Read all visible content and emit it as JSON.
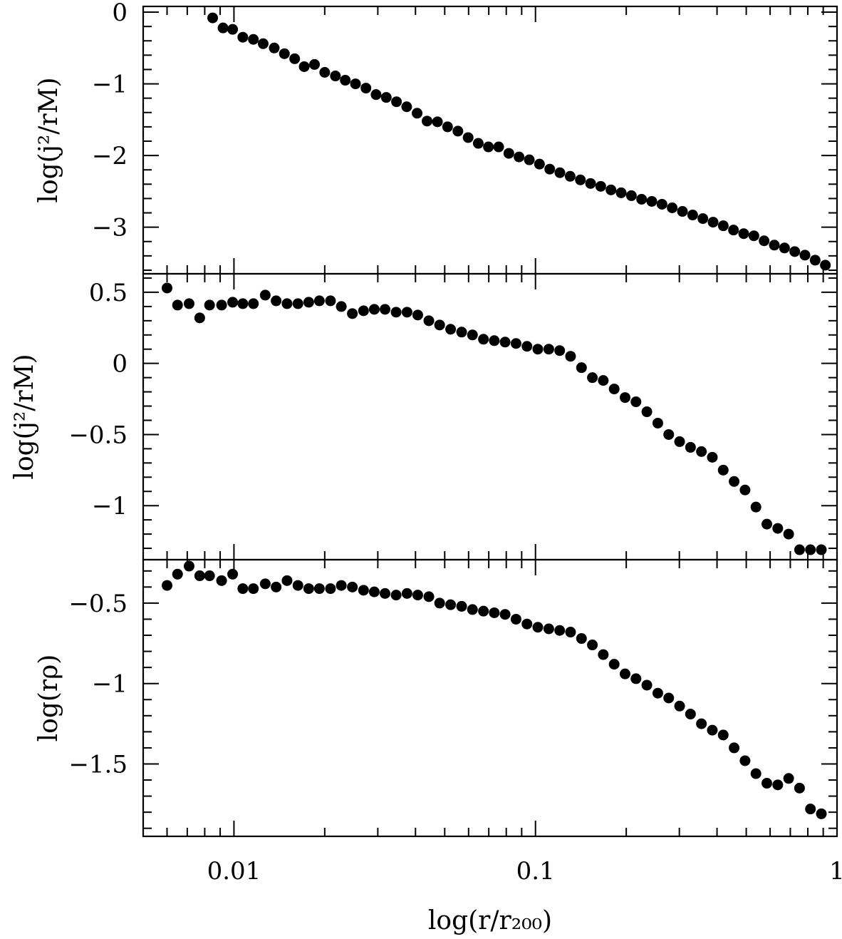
{
  "chart_data": [
    {
      "type": "scatter",
      "panel": "top",
      "ylabel": "log(j²/rM)",
      "ylim": [
        -3.65,
        0.08
      ],
      "yticks": [
        "0",
        "−1",
        "−2",
        "−3"
      ],
      "ytick_values": [
        0,
        -1,
        -2,
        -3
      ],
      "series": [
        {
          "x": [
            0.0085,
            0.0092,
            0.0099,
            0.0107,
            0.0116,
            0.0125,
            0.0136,
            0.0147,
            0.0159,
            0.0171,
            0.0185,
            0.02,
            0.0217,
            0.0234,
            0.0253,
            0.0274,
            0.0296,
            0.032,
            0.0346,
            0.0374,
            0.0405,
            0.0437,
            0.0473,
            0.0511,
            0.0553,
            0.0598,
            0.0646,
            0.0698,
            0.0755,
            0.0816,
            0.0882,
            0.0954,
            0.1031,
            0.1115,
            0.1205,
            0.1303,
            0.1409,
            0.1523,
            0.1646,
            0.178,
            0.1924,
            0.208,
            0.2249,
            0.2431,
            0.2628,
            0.2841,
            0.3072,
            0.3321,
            0.359,
            0.3881,
            0.4196,
            0.4536,
            0.4904,
            0.5301,
            0.5731,
            0.6196,
            0.6698,
            0.7241,
            0.7828,
            0.8463,
            0.9149
          ],
          "y": [
            -0.08,
            -0.22,
            -0.24,
            -0.35,
            -0.38,
            -0.44,
            -0.5,
            -0.58,
            -0.65,
            -0.76,
            -0.73,
            -0.84,
            -0.89,
            -0.95,
            -1.0,
            -1.06,
            -1.15,
            -1.19,
            -1.25,
            -1.32,
            -1.41,
            -1.52,
            -1.53,
            -1.6,
            -1.66,
            -1.75,
            -1.83,
            -1.88,
            -1.88,
            -1.97,
            -2.02,
            -2.06,
            -2.12,
            -2.19,
            -2.24,
            -2.29,
            -2.34,
            -2.39,
            -2.43,
            -2.48,
            -2.52,
            -2.56,
            -2.61,
            -2.64,
            -2.68,
            -2.73,
            -2.78,
            -2.83,
            -2.88,
            -2.93,
            -2.98,
            -3.04,
            -3.09,
            -3.12,
            -3.19,
            -3.25,
            -3.29,
            -3.34,
            -3.39,
            -3.46,
            -3.53
          ]
        }
      ]
    },
    {
      "type": "scatter",
      "panel": "middle",
      "ylabel": "log(j²/rM)",
      "ylim": [
        -1.38,
        0.63
      ],
      "yticks": [
        "0.5",
        "0",
        "−0.5",
        "−1"
      ],
      "ytick_values": [
        0.5,
        0,
        -0.5,
        -1
      ],
      "series": [
        {
          "x": [
            0.006,
            0.0065,
            0.0071,
            0.0077,
            0.0083,
            0.0091,
            0.0099,
            0.0107,
            0.0116,
            0.0127,
            0.0138,
            0.015,
            0.0163,
            0.0177,
            0.0192,
            0.0209,
            0.0227,
            0.0247,
            0.0269,
            0.0292,
            0.0317,
            0.0345,
            0.0375,
            0.0407,
            0.0443,
            0.0481,
            0.0523,
            0.0569,
            0.0618,
            0.0672,
            0.073,
            0.0793,
            0.0862,
            0.0937,
            0.1018,
            0.1107,
            0.1203,
            0.1307,
            0.1421,
            0.1544,
            0.1678,
            0.1824,
            0.1982,
            0.2154,
            0.2341,
            0.2545,
            0.2766,
            0.3006,
            0.3267,
            0.3551,
            0.3859,
            0.4194,
            0.4558,
            0.4954,
            0.5384,
            0.5852,
            0.636,
            0.6912,
            0.7512,
            0.8164,
            0.8873
          ],
          "y": [
            0.53,
            0.41,
            0.42,
            0.32,
            0.41,
            0.41,
            0.43,
            0.42,
            0.42,
            0.48,
            0.44,
            0.42,
            0.42,
            0.43,
            0.44,
            0.44,
            0.4,
            0.35,
            0.37,
            0.38,
            0.38,
            0.36,
            0.36,
            0.34,
            0.3,
            0.27,
            0.24,
            0.22,
            0.2,
            0.17,
            0.16,
            0.15,
            0.14,
            0.12,
            0.1,
            0.1,
            0.09,
            0.05,
            -0.03,
            -0.1,
            -0.12,
            -0.18,
            -0.24,
            -0.27,
            -0.34,
            -0.42,
            -0.5,
            -0.55,
            -0.59,
            -0.62,
            -0.66,
            -0.75,
            -0.83,
            -0.89,
            -1.01,
            -1.13,
            -1.16,
            -1.2,
            -1.31,
            -1.31,
            -1.31
          ]
        }
      ]
    },
    {
      "type": "scatter",
      "panel": "bottom",
      "ylabel": "log(rρ)",
      "ylim": [
        -1.95,
        -0.23
      ],
      "yticks": [
        "−0.5",
        "−1",
        "−1.5"
      ],
      "ytick_values": [
        -0.5,
        -1,
        -1.5
      ],
      "xlabel": "log(r/r₂₀₀)",
      "xscale": "log",
      "xlim": [
        0.005,
        1
      ],
      "xticks": [
        "0.01",
        "0.1",
        "1"
      ],
      "xtick_values": [
        0.01,
        0.1,
        1
      ],
      "series": [
        {
          "x": [
            0.006,
            0.0065,
            0.0071,
            0.0077,
            0.0083,
            0.0091,
            0.0099,
            0.0107,
            0.0116,
            0.0127,
            0.0138,
            0.015,
            0.0163,
            0.0177,
            0.0192,
            0.0209,
            0.0227,
            0.0247,
            0.0269,
            0.0292,
            0.0317,
            0.0345,
            0.0375,
            0.0407,
            0.0443,
            0.0481,
            0.0523,
            0.0569,
            0.0618,
            0.0672,
            0.073,
            0.0793,
            0.0862,
            0.0937,
            0.1018,
            0.1107,
            0.1203,
            0.1307,
            0.1421,
            0.1544,
            0.1678,
            0.1824,
            0.1982,
            0.2154,
            0.2341,
            0.2545,
            0.2766,
            0.3006,
            0.3267,
            0.3551,
            0.3859,
            0.4194,
            0.4558,
            0.4954,
            0.5384,
            0.5852,
            0.636,
            0.6912,
            0.7512,
            0.8164,
            0.8873
          ],
          "y": [
            -0.39,
            -0.32,
            -0.27,
            -0.33,
            -0.33,
            -0.36,
            -0.32,
            -0.41,
            -0.41,
            -0.38,
            -0.4,
            -0.36,
            -0.39,
            -0.41,
            -0.41,
            -0.41,
            -0.39,
            -0.4,
            -0.42,
            -0.43,
            -0.44,
            -0.45,
            -0.44,
            -0.45,
            -0.46,
            -0.5,
            -0.51,
            -0.52,
            -0.54,
            -0.55,
            -0.56,
            -0.57,
            -0.6,
            -0.63,
            -0.65,
            -0.66,
            -0.67,
            -0.68,
            -0.72,
            -0.76,
            -0.82,
            -0.88,
            -0.94,
            -0.97,
            -1.01,
            -1.06,
            -1.09,
            -1.14,
            -1.19,
            -1.25,
            -1.29,
            -1.32,
            -1.4,
            -1.48,
            -1.56,
            -1.62,
            -1.63,
            -1.59,
            -1.65,
            -1.78,
            -1.81
          ]
        }
      ]
    }
  ]
}
